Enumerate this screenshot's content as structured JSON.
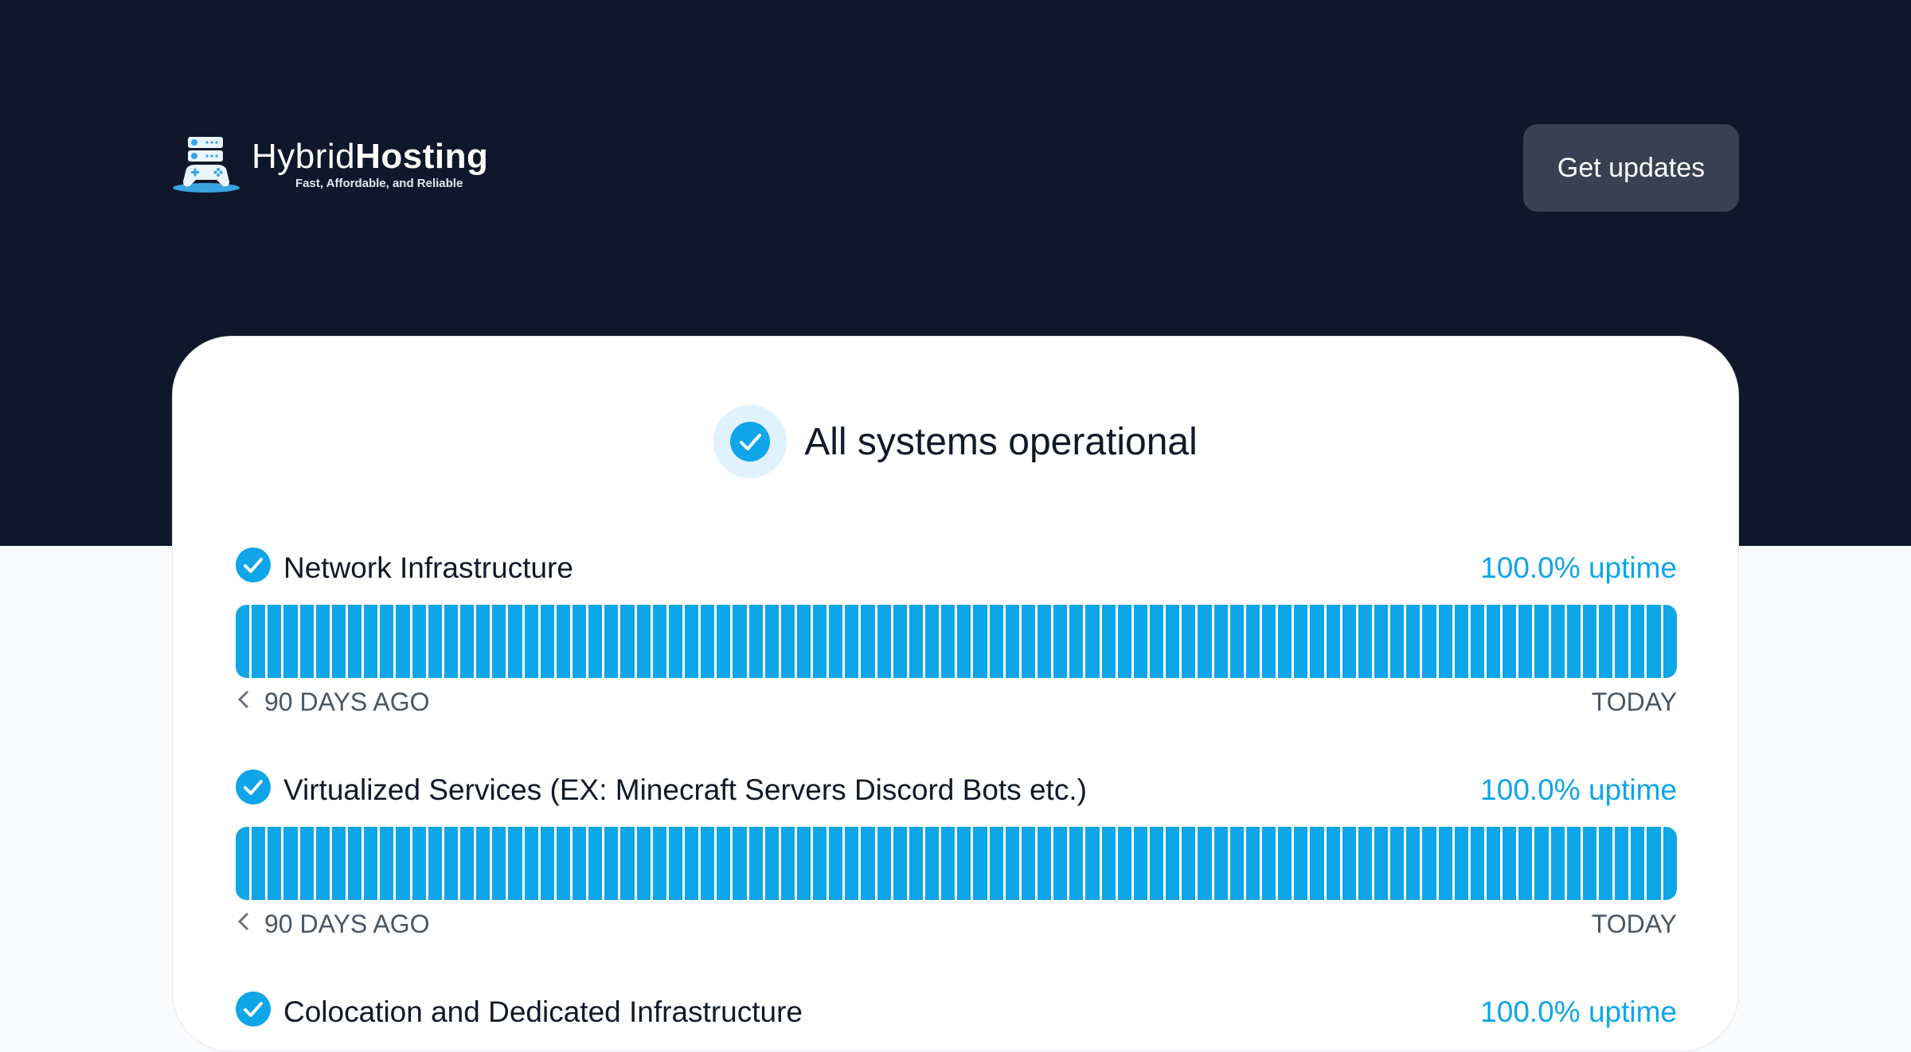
{
  "header": {
    "logo": {
      "name_light": "Hybrid",
      "name_bold": "Hosting",
      "tagline": "Fast, Affordable, and Reliable"
    },
    "get_updates_label": "Get updates"
  },
  "status": {
    "title": "All systems operational",
    "icon": "check-circle-icon"
  },
  "colors": {
    "accent": "#0ea5e9",
    "header_bg": "#0f172a",
    "button_bg": "#374151"
  },
  "services": [
    {
      "name": "Network Infrastructure",
      "uptime": "100.0% uptime",
      "days": 90,
      "start_label": "90 DAYS AGO",
      "end_label": "TODAY"
    },
    {
      "name": "Virtualized Services (EX: Minecraft Servers Discord Bots etc.)",
      "uptime": "100.0% uptime",
      "days": 90,
      "start_label": "90 DAYS AGO",
      "end_label": "TODAY"
    },
    {
      "name": "Colocation and Dedicated Infrastructure",
      "uptime": "100.0% uptime"
    }
  ]
}
